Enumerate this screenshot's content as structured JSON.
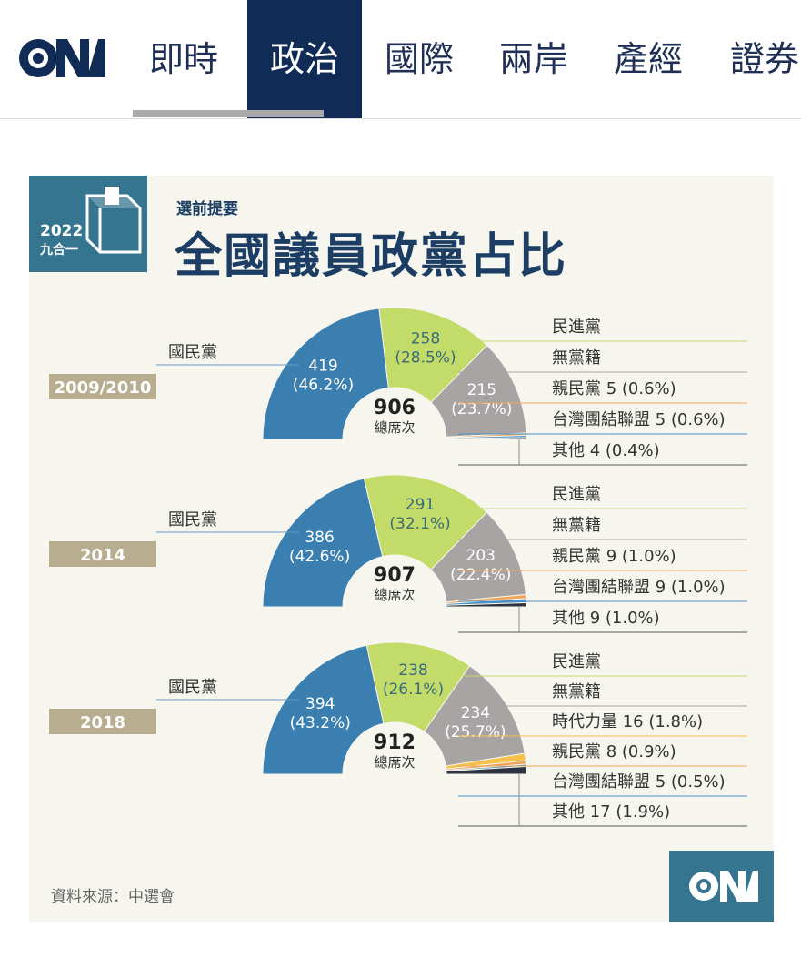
{
  "nav": {
    "items": [
      {
        "label": "即時",
        "active": false
      },
      {
        "label": "政治",
        "active": true
      },
      {
        "label": "國際",
        "active": false
      },
      {
        "label": "兩岸",
        "active": false
      },
      {
        "label": "產經",
        "active": false
      },
      {
        "label": "證券",
        "active": false
      }
    ]
  },
  "header": {
    "badge_year": "2022",
    "badge_label": "九合一",
    "subtitle": "選前提要",
    "title": "全國議員政黨占比"
  },
  "footer": {
    "source": "資料來源：中選會"
  },
  "colors": {
    "nav_active": "#102c56",
    "brand": "#36758f",
    "kmt": "#3a7fb0",
    "dpp": "#c3db69",
    "independent": "#a9a4a4",
    "minor": "#f0a65a",
    "other": "#2b3240",
    "year_tag": "#b8ad8f"
  },
  "center_caption": "總席次",
  "chart_data": [
    {
      "type": "pie",
      "year": "2009/2010",
      "total": "906",
      "kmt": {
        "name": "國民黨",
        "seats": 419,
        "pct": "(46.2%)"
      },
      "slices": [
        {
          "name": "國民黨",
          "seats": 419,
          "pct": "(46.2%)",
          "color": "#3a7fb0"
        },
        {
          "name": "民進黨",
          "seats": 258,
          "pct": "(28.5%)",
          "color": "#c3db69"
        },
        {
          "name": "無黨籍",
          "seats": 215,
          "pct": "(23.7%)",
          "color": "#a9a4a4"
        },
        {
          "name": "親民黨",
          "seats": 5,
          "pct": "(0.6%)",
          "color": "#f0a65a"
        },
        {
          "name": "台灣團結聯盟",
          "seats": 5,
          "pct": "(0.6%)",
          "color": "#4b8fc4"
        },
        {
          "name": "其他",
          "seats": 4,
          "pct": "(0.4%)",
          "color": "#2b3240"
        }
      ],
      "legend": [
        "民進黨",
        "無黨籍",
        "親民黨 5 (0.6%)",
        "台灣團結聯盟 5 (0.6%)",
        "其他 4 (0.4%)"
      ]
    },
    {
      "type": "pie",
      "year": "2014",
      "total": "907",
      "kmt": {
        "name": "國民黨",
        "seats": 386,
        "pct": "(42.6%)"
      },
      "slices": [
        {
          "name": "國民黨",
          "seats": 386,
          "pct": "(42.6%)",
          "color": "#3a7fb0"
        },
        {
          "name": "民進黨",
          "seats": 291,
          "pct": "(32.1%)",
          "color": "#c3db69"
        },
        {
          "name": "無黨籍",
          "seats": 203,
          "pct": "(22.4%)",
          "color": "#a9a4a4"
        },
        {
          "name": "親民黨",
          "seats": 9,
          "pct": "(1.0%)",
          "color": "#f0a65a"
        },
        {
          "name": "台灣團結聯盟",
          "seats": 9,
          "pct": "(1.0%)",
          "color": "#4b8fc4"
        },
        {
          "name": "其他",
          "seats": 9,
          "pct": "(1.0%)",
          "color": "#2b3240"
        }
      ],
      "legend": [
        "民進黨",
        "無黨籍",
        "親民黨 9 (1.0%)",
        "台灣團結聯盟 9 (1.0%)",
        "其他 9 (1.0%)"
      ]
    },
    {
      "type": "pie",
      "year": "2018",
      "total": "912",
      "kmt": {
        "name": "國民黨",
        "seats": 394,
        "pct": "(43.2%)"
      },
      "slices": [
        {
          "name": "國民黨",
          "seats": 394,
          "pct": "(43.2%)",
          "color": "#3a7fb0"
        },
        {
          "name": "民進黨",
          "seats": 238,
          "pct": "(26.1%)",
          "color": "#c3db69"
        },
        {
          "name": "無黨籍",
          "seats": 234,
          "pct": "(25.7%)",
          "color": "#a9a4a4"
        },
        {
          "name": "時代力量",
          "seats": 16,
          "pct": "(1.8%)",
          "color": "#f5c14a"
        },
        {
          "name": "親民黨",
          "seats": 8,
          "pct": "(0.9%)",
          "color": "#f0a65a"
        },
        {
          "name": "台灣團結聯盟",
          "seats": 5,
          "pct": "(0.5%)",
          "color": "#4b8fc4"
        },
        {
          "name": "其他",
          "seats": 17,
          "pct": "(1.9%)",
          "color": "#2b3240"
        }
      ],
      "legend": [
        "民進黨",
        "無黨籍",
        "時代力量 16 (1.8%)",
        "親民黨 8 (0.9%)",
        "台灣團結聯盟 5 (0.5%)",
        "其他 17 (1.9%)"
      ]
    }
  ]
}
